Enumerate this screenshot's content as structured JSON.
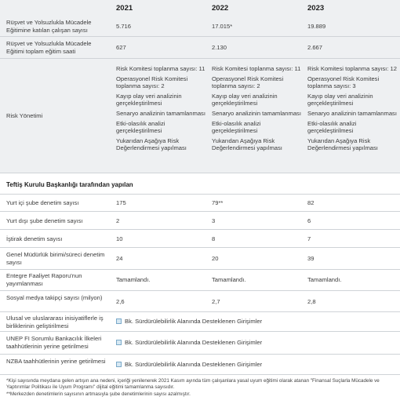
{
  "header": {
    "years": [
      "2021",
      "2022",
      "2023"
    ]
  },
  "rows_top": [
    {
      "label": "Rüşvet ve Yolsuzlukla Mücadele Eğitimine katılan çalışan sayısı",
      "values": [
        "5.716",
        "17.015*",
        "19.889"
      ]
    },
    {
      "label": "Rüşvet ve Yolsuzlukla Mücadele Eğitimi toplam eğitim saati",
      "values": [
        "627",
        "2.130",
        "2.667"
      ]
    }
  ],
  "risk": {
    "label": "Risk Yönetimi",
    "columns": [
      [
        "Risk Komitesi toplanma sayısı: 11",
        "Operasyonel Risk Komitesi toplanma sayısı: 2",
        "Kayıp olay veri analizinin gerçekleştirilmesi",
        "Senaryo analizinin tamamlanması",
        "Etki-olasılık analizi gerçekleştirilmesi",
        "Yukarıdan Aşağıya Risk Değerlendirmesi yapılması"
      ],
      [
        "Risk Komitesi toplanma sayısı: 11",
        "Operasyonel Risk Komitesi toplanma sayısı: 2",
        "Kayıp olay veri analizinin gerçekleştirilmesi",
        "Senaryo analizinin tamamlanması",
        "Etki-olasılık analizi gerçekleştirilmesi",
        "Yukarıdan Aşağıya Risk Değerlendirmesi yapılması"
      ],
      [
        "Risk Komitesi toplanma sayısı: 12",
        "Operasyonel Risk Komitesi toplanma sayısı: 3",
        "Kayıp olay veri analizinin gerçekleştirilmesi",
        "Senaryo analizinin tamamlanması",
        "Etki-olasılık analizi gerçekleştirilmesi",
        "Yukarıdan Aşağıya Risk Değerlendirmesi yapılması"
      ]
    ]
  },
  "section_title": "Teftiş Kurulu Başkanlığı tarafından yapılan",
  "rows_mid": [
    {
      "label": "Yurt içi şube denetim sayısı",
      "values": [
        "175",
        "79**",
        "82"
      ]
    },
    {
      "label": "Yurt dışı şube denetim sayısı",
      "values": [
        "2",
        "3",
        "6"
      ]
    },
    {
      "label": "İştirak denetim sayısı",
      "values": [
        "10",
        "8",
        "7"
      ]
    },
    {
      "label": "Genel Müdürlük birimi/süreci denetim sayısı",
      "values": [
        "24",
        "20",
        "39"
      ]
    },
    {
      "label": "Entegre Faaliyet Raporu'nun yayımlanması",
      "values": [
        "Tamamlandı.",
        "Tamamlandı.",
        "Tamamlandı."
      ]
    },
    {
      "label": "Sosyal medya takipçi sayısı (milyon)",
      "values": [
        "2,6",
        "2,7",
        "2,8"
      ]
    }
  ],
  "rows_ref": [
    {
      "label": "Ulusal ve uluslararası inisiyatiflerle iş birliklerinin geliştirilmesi",
      "ref": "Bk. Sürdürülebilirlik Alanında Desteklenen Girişimler"
    },
    {
      "label": "UNEP FI Sorumlu Bankacılık İlkeleri taahhütlerinin yerine getirilmesi",
      "ref": "Bk. Sürdürülebilirlik Alanında Desteklenen Girişimler"
    },
    {
      "label": "NZBA taahhütlerinin yerine getirilmesi",
      "ref": "Bk. Sürdürülebilirlik Alanında Desteklenen Girişimler"
    }
  ],
  "notes": [
    "*Kişi sayısında meydana gelen artışın ana nedeni, içeriği yenilenerek 2021 Kasım ayında tüm çalışanlara yasal uyum eğitimi olarak atanan \"Finansal Suçlarla Mücadele ve Yaptırımlar Politikası ile Uyum Programı\" dijital eğitimi tamamlanma sayısıdır.",
    "**Merkezden denetimlerin sayısının artmasıyla şube denetimlerinin sayısı azalmıştır."
  ]
}
